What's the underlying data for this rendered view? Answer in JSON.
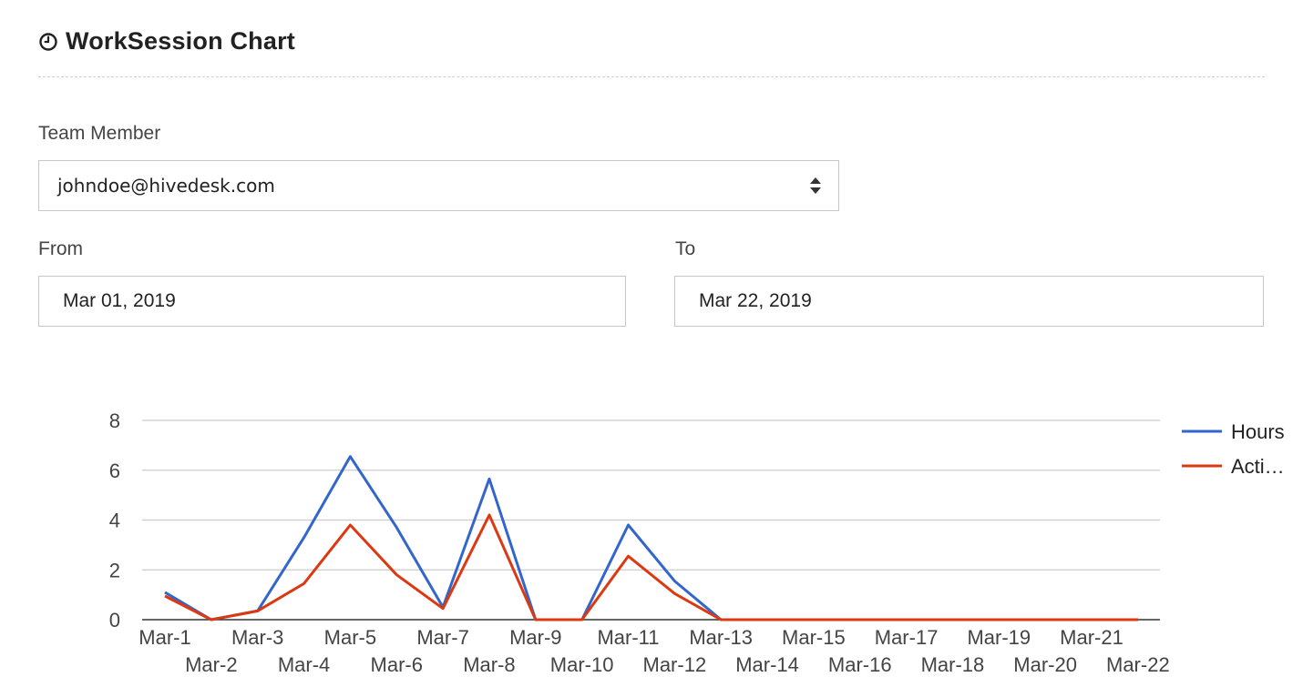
{
  "header": {
    "icon": "clock-icon",
    "title": "WorkSession Chart"
  },
  "form": {
    "team_member_label": "Team Member",
    "team_member_value": "johndoe@hivedesk.com",
    "from_label": "From",
    "from_value": "Mar 01, 2019",
    "to_label": "To",
    "to_value": "Mar 22, 2019"
  },
  "chart_data": {
    "type": "line",
    "categories": [
      "Mar-1",
      "Mar-2",
      "Mar-3",
      "Mar-4",
      "Mar-5",
      "Mar-6",
      "Mar-7",
      "Mar-8",
      "Mar-9",
      "Mar-10",
      "Mar-11",
      "Mar-12",
      "Mar-13",
      "Mar-14",
      "Mar-15",
      "Mar-16",
      "Mar-17",
      "Mar-18",
      "Mar-19",
      "Mar-20",
      "Mar-21",
      "Mar-22"
    ],
    "series": [
      {
        "name": "Hours",
        "color": "#3366cc",
        "values": [
          1.1,
          0,
          0.35,
          3.3,
          6.55,
          3.7,
          0.5,
          5.65,
          0,
          0,
          3.8,
          1.55,
          0,
          0,
          0,
          0,
          0,
          0,
          0,
          0,
          0,
          0
        ]
      },
      {
        "name": "Acti…",
        "color": "#dc3912",
        "values": [
          0.95,
          0,
          0.35,
          1.45,
          3.8,
          1.8,
          0.45,
          4.2,
          0,
          0,
          2.55,
          1.05,
          0,
          0,
          0,
          0,
          0,
          0,
          0,
          0,
          0,
          0
        ]
      }
    ],
    "ylim": [
      0,
      8
    ],
    "yticks": [
      0,
      2,
      4,
      6,
      8
    ],
    "grid": true,
    "legend": "right"
  }
}
